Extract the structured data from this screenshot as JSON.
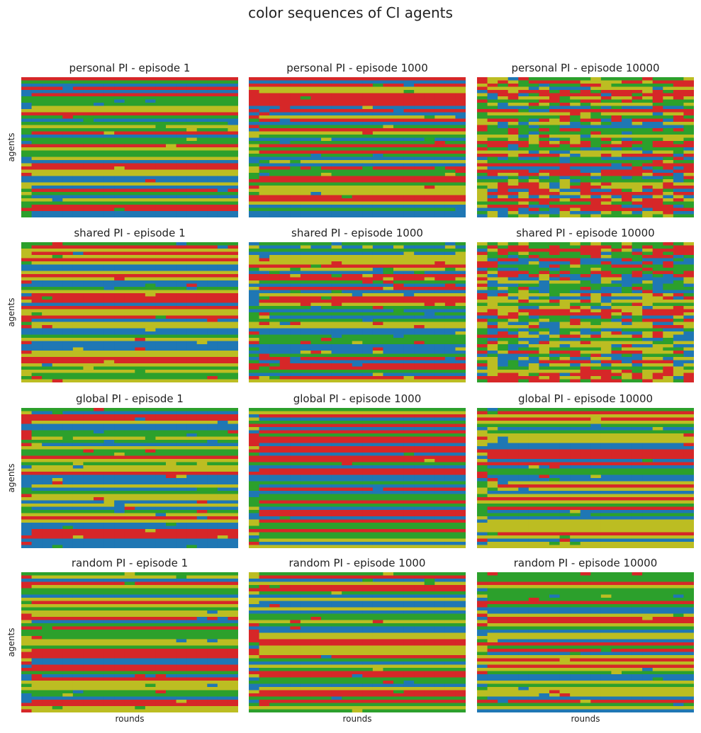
{
  "figure": {
    "title": "color sequences of CI agents",
    "row_ylabel": "agents",
    "col_xlabel": "rounds"
  },
  "colors": {
    "red": "#d62728",
    "green": "#2ca02c",
    "blue": "#1f77b4",
    "olive": "#bcbd22"
  },
  "chart_data": [
    {
      "type": "heatmap",
      "title": "personal PI - episode 1",
      "xlabel": "",
      "ylabel": "agents",
      "row_seed": 11,
      "noise": 0.03
    },
    {
      "type": "heatmap",
      "title": "personal PI - episode 1000",
      "xlabel": "",
      "ylabel": "",
      "row_seed": 23,
      "noise": 0.04
    },
    {
      "type": "heatmap",
      "title": "personal PI - episode 10000",
      "xlabel": "",
      "ylabel": "",
      "row_seed": 37,
      "noise": 0.35
    },
    {
      "type": "heatmap",
      "title": "shared PI - episode 1",
      "xlabel": "",
      "ylabel": "agents",
      "row_seed": 41,
      "noise": 0.04
    },
    {
      "type": "heatmap",
      "title": "shared PI - episode 1000",
      "xlabel": "",
      "ylabel": "",
      "row_seed": 53,
      "noise": 0.1
    },
    {
      "type": "heatmap",
      "title": "shared PI - episode 10000",
      "xlabel": "",
      "ylabel": "",
      "row_seed": 67,
      "noise": 0.45
    },
    {
      "type": "heatmap",
      "title": "global PI - episode 1",
      "xlabel": "",
      "ylabel": "agents",
      "row_seed": 71,
      "noise": 0.05
    },
    {
      "type": "heatmap",
      "title": "global PI - episode 1000",
      "xlabel": "",
      "ylabel": "",
      "row_seed": 83,
      "noise": 0.01
    },
    {
      "type": "heatmap",
      "title": "global PI - episode 10000",
      "xlabel": "",
      "ylabel": "",
      "row_seed": 97,
      "noise": 0.04
    },
    {
      "type": "heatmap",
      "title": "random PI - episode 1",
      "xlabel": "rounds",
      "ylabel": "agents",
      "row_seed": 101,
      "noise": 0.03
    },
    {
      "type": "heatmap",
      "title": "random PI - episode 1000",
      "xlabel": "rounds",
      "ylabel": "",
      "row_seed": 113,
      "noise": 0.03
    },
    {
      "type": "heatmap",
      "title": "random PI - episode 10000",
      "xlabel": "rounds",
      "ylabel": "",
      "row_seed": 127,
      "noise": 0.03
    }
  ]
}
